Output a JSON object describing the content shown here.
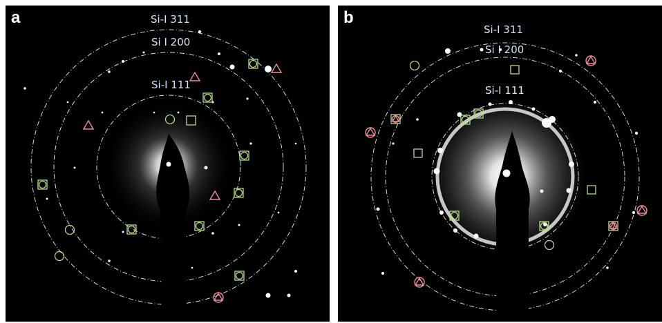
{
  "panels": [
    {
      "letter": "a",
      "rings": [
        {
          "label": "Si-I 311"
        },
        {
          "label": "Si I 200"
        },
        {
          "label": "Si-I 111"
        }
      ]
    },
    {
      "letter": "b",
      "rings": [
        {
          "label": "Si-I 311"
        },
        {
          "label": "Si I 200"
        },
        {
          "label": "Si-I 111"
        }
      ]
    }
  ],
  "colors": {
    "background": "#000000",
    "ring": "#d9d9d9",
    "label": "#cfe6f5",
    "square_marker": "#b6d98a",
    "circle_marker": "#b6d98a",
    "triangle_marker": "#f08aa0"
  },
  "legend_icons": [
    "square-marker",
    "circle-marker",
    "triangle-marker"
  ]
}
